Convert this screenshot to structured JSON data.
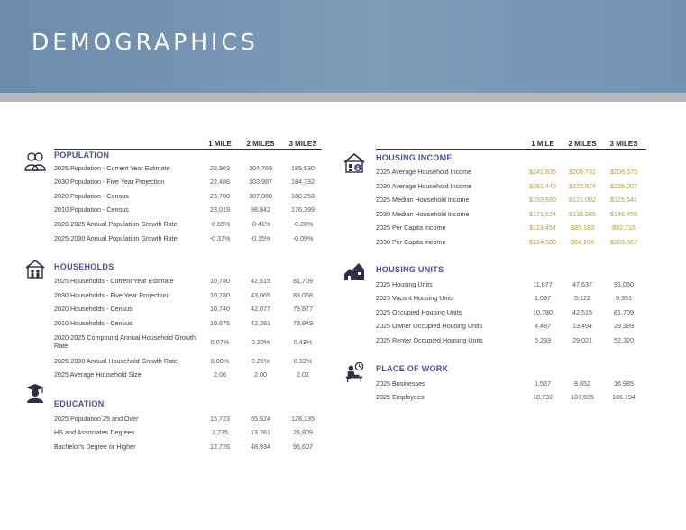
{
  "header": {
    "title": "DEMOGRAPHICS"
  },
  "columns": [
    "1 MILE",
    "2 MILES",
    "3 MILES"
  ],
  "left": {
    "population": {
      "title": "POPULATION",
      "rows": [
        {
          "label": "2025 Population - Current Year Estimate",
          "v1": "22,903",
          "v2": "104,769",
          "v3": "185,530"
        },
        {
          "label": "2030 Population - Five Year Projection",
          "v1": "22,486",
          "v2": "103,987",
          "v3": "184,732"
        },
        {
          "label": "2020 Population - Census",
          "v1": "23,700",
          "v2": "107,080",
          "v3": "188,258"
        },
        {
          "label": "2010 Population - Census",
          "v1": "23,019",
          "v2": "98,842",
          "v3": "176,399"
        },
        {
          "label": "2020-2025 Annual Population Growth Rate",
          "v1": "-0.65%",
          "v2": "-0.41%",
          "v3": "-0.28%"
        },
        {
          "label": "2025-2030 Annual Population Growth Rate",
          "v1": "-0.37%",
          "v2": "-0.15%",
          "v3": "-0.09%"
        }
      ]
    },
    "households": {
      "title": "HOUSEHOLDS",
      "rows": [
        {
          "label": "2025 Households - Current Year Estimate",
          "v1": "10,780",
          "v2": "42,515",
          "v3": "81,709"
        },
        {
          "label": "2030 Households - Five Year Projection",
          "v1": "10,780",
          "v2": "43,065",
          "v3": "83,068"
        },
        {
          "label": "2020 Households - Census",
          "v1": "10,740",
          "v2": "42,077",
          "v3": "79,877"
        },
        {
          "label": "2010 Households - Census",
          "v1": "10,675",
          "v2": "42,281",
          "v3": "78,949"
        },
        {
          "label": "2020-2025 Compound Annual Household Growth Rate",
          "v1": "0.07%",
          "v2": "0.20%",
          "v3": "0.43%"
        },
        {
          "label": "2025-2030 Annual Household Growth Rate",
          "v1": "0.00%",
          "v2": "0.26%",
          "v3": "0.33%"
        },
        {
          "label": "2025 Average Household Size",
          "v1": "2.06",
          "v2": "2.00",
          "v3": "2.02"
        }
      ]
    },
    "education": {
      "title": "EDUCATION",
      "rows": [
        {
          "label": "2025 Population 25 and Over",
          "v1": "15,723",
          "v2": "65,524",
          "v3": "128,135"
        },
        {
          "label": "HS and Associates Degrees",
          "v1": "2,735",
          "v2": "13,261",
          "v3": "26,809"
        },
        {
          "label": "Bachelor's Degree or Higher",
          "v1": "12,726",
          "v2": "48,934",
          "v3": "96,607"
        }
      ]
    }
  },
  "right": {
    "housing_income": {
      "title": "HOUSING INCOME",
      "rows": [
        {
          "label": "2025 Average Household Income",
          "v1": "$241,835",
          "v2": "$205,731",
          "v3": "$208,673"
        },
        {
          "label": "2030 Average Household Income",
          "v1": "$261,440",
          "v2": "$222,824",
          "v3": "$228,007"
        },
        {
          "label": "2025 Median Household Income",
          "v1": "$153,690",
          "v2": "$121,002",
          "v3": "$125,541"
        },
        {
          "label": "2030 Median Household Income",
          "v1": "$171,524",
          "v2": "$138,085",
          "v3": "$146,458"
        },
        {
          "label": "2025 Per Capita Income",
          "v1": "$113,454",
          "v2": "$85,183",
          "v3": "$92,716"
        },
        {
          "label": "2030 Per Capita Income",
          "v1": "$124,880",
          "v2": "$94,106",
          "v3": "$103,367"
        }
      ]
    },
    "housing_units": {
      "title": "HOUSING UNITS",
      "rows": [
        {
          "label": "2025 Housing Units",
          "v1": "11,877",
          "v2": "47,637",
          "v3": "91,060"
        },
        {
          "label": "2025 Vacant Housing Units",
          "v1": "1,097",
          "v2": "5,122",
          "v3": "9,351"
        },
        {
          "label": "2025 Occupied Housing Units",
          "v1": "10,780",
          "v2": "42,515",
          "v3": "81,709"
        },
        {
          "label": "2025 Owner Occupied Housing Units",
          "v1": "4,487",
          "v2": "13,494",
          "v3": "29,389"
        },
        {
          "label": "2025 Renter Occupied Housing Units",
          "v1": "6,293",
          "v2": "29,021",
          "v3": "52,320"
        }
      ]
    },
    "place_of_work": {
      "title": "PLACE OF WORK",
      "rows": [
        {
          "label": "2025 Businesses",
          "v1": "1,567",
          "v2": "8,652",
          "v3": "16,985"
        },
        {
          "label": "2025 Employees",
          "v1": "10,732",
          "v2": "107,595",
          "v3": "186,194"
        }
      ]
    }
  },
  "colors": {
    "banner": "#7493b2",
    "section": "#4a4f9a",
    "money": "#b89a3e"
  },
  "icons": [
    "people-icon",
    "house-icon",
    "graduation-icon",
    "money-house-icon",
    "houses-icon",
    "worker-desk-icon"
  ]
}
